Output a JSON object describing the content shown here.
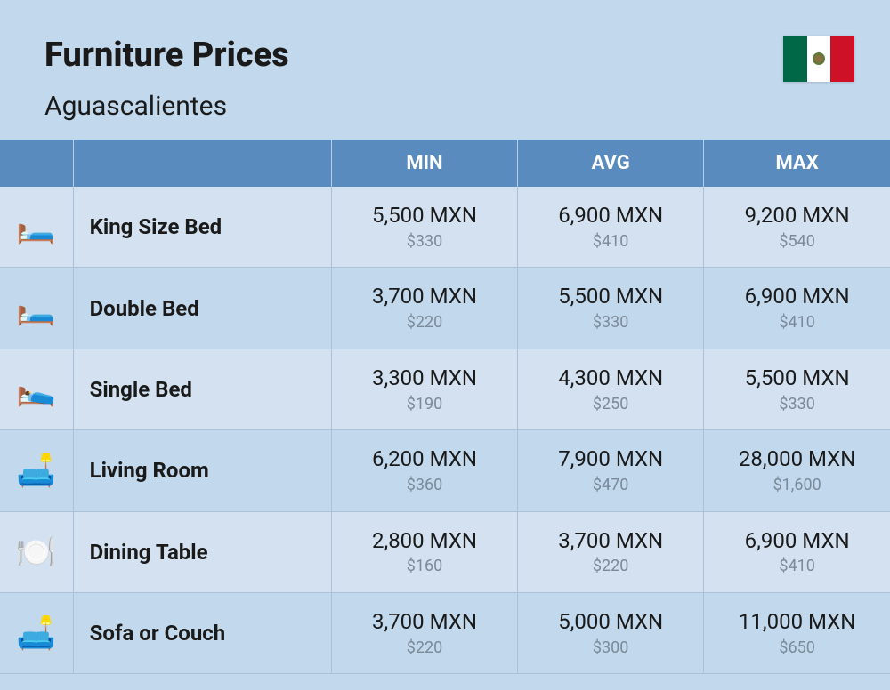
{
  "header": {
    "title": "Furniture Prices",
    "subtitle": "Aguascalientes",
    "flag_colors": {
      "green": "#006847",
      "white": "#ffffff",
      "red": "#ce1126"
    }
  },
  "table": {
    "columns": [
      "MIN",
      "AVG",
      "MAX"
    ],
    "header_bg": "#5a8bbf",
    "header_text_color": "#ffffff",
    "row_colors": {
      "odd": "#d3e1f0",
      "even": "#c2d8ec"
    },
    "border_color": "#a9c2da",
    "price_main_color": "#1a1a1a",
    "price_sub_color": "#7a8a99",
    "rows": [
      {
        "icon": "🛏️",
        "name": "King Size Bed",
        "min": {
          "mxn": "5,500 MXN",
          "usd": "$330"
        },
        "avg": {
          "mxn": "6,900 MXN",
          "usd": "$410"
        },
        "max": {
          "mxn": "9,200 MXN",
          "usd": "$540"
        }
      },
      {
        "icon": "🛏️",
        "name": "Double Bed",
        "min": {
          "mxn": "3,700 MXN",
          "usd": "$220"
        },
        "avg": {
          "mxn": "5,500 MXN",
          "usd": "$330"
        },
        "max": {
          "mxn": "6,900 MXN",
          "usd": "$410"
        }
      },
      {
        "icon": "🛌",
        "name": "Single Bed",
        "min": {
          "mxn": "3,300 MXN",
          "usd": "$190"
        },
        "avg": {
          "mxn": "4,300 MXN",
          "usd": "$250"
        },
        "max": {
          "mxn": "5,500 MXN",
          "usd": "$330"
        }
      },
      {
        "icon": "🛋️",
        "name": "Living Room",
        "min": {
          "mxn": "6,200 MXN",
          "usd": "$360"
        },
        "avg": {
          "mxn": "7,900 MXN",
          "usd": "$470"
        },
        "max": {
          "mxn": "28,000 MXN",
          "usd": "$1,600"
        }
      },
      {
        "icon": "🍽️",
        "name": "Dining Table",
        "min": {
          "mxn": "2,800 MXN",
          "usd": "$160"
        },
        "avg": {
          "mxn": "3,700 MXN",
          "usd": "$220"
        },
        "max": {
          "mxn": "6,900 MXN",
          "usd": "$410"
        }
      },
      {
        "icon": "🛋️",
        "name": "Sofa or Couch",
        "min": {
          "mxn": "3,700 MXN",
          "usd": "$220"
        },
        "avg": {
          "mxn": "5,000 MXN",
          "usd": "$300"
        },
        "max": {
          "mxn": "11,000 MXN",
          "usd": "$650"
        }
      }
    ]
  },
  "colors": {
    "background": "#c2d8ec",
    "title_color": "#1a1a1a"
  }
}
